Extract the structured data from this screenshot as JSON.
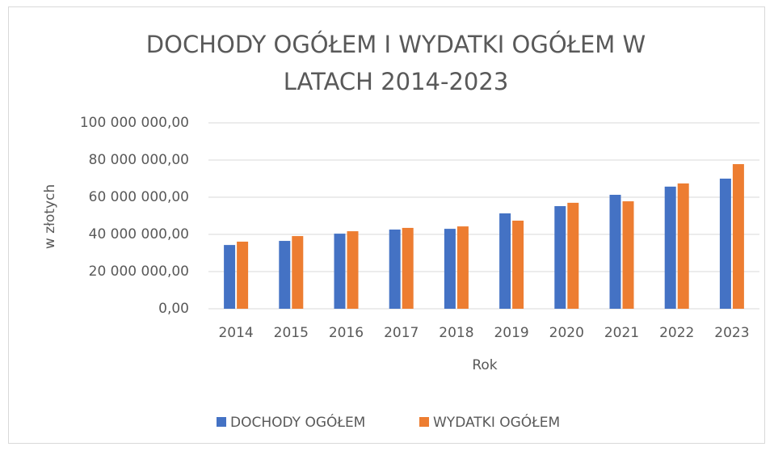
{
  "chart_data": {
    "type": "bar",
    "title": "DOCHODY OGÓŁEM I WYDATKI OGÓŁEM W LATACH 2014-2023",
    "x_label": "Rok",
    "y_label": "w złotych",
    "categories": [
      "2014",
      "2015",
      "2016",
      "2017",
      "2018",
      "2019",
      "2020",
      "2021",
      "2022",
      "2023"
    ],
    "series": [
      {
        "name": "DOCHODY OGÓŁEM",
        "color": "#4472c4",
        "values": [
          34300000,
          36500000,
          40400000,
          42600000,
          43000000,
          51300000,
          55200000,
          61300000,
          65700000,
          70000000
        ]
      },
      {
        "name": "WYDATKI OGÓŁEM",
        "color": "#ed7d31",
        "values": [
          36100000,
          39100000,
          41700000,
          43500000,
          44300000,
          47400000,
          57000000,
          57800000,
          67400000,
          77800000
        ]
      }
    ],
    "ylim": [
      0,
      100000000
    ],
    "yticks": [
      {
        "value": 0,
        "label": "0,00"
      },
      {
        "value": 20000000,
        "label": "20 000 000,00"
      },
      {
        "value": 40000000,
        "label": "40 000 000,00"
      },
      {
        "value": 60000000,
        "label": "60 000 000,00"
      },
      {
        "value": 80000000,
        "label": "80 000 000,00"
      },
      {
        "value": 100000000,
        "label": "100 000 000,00"
      }
    ],
    "grid": true,
    "legend": "bottom"
  }
}
